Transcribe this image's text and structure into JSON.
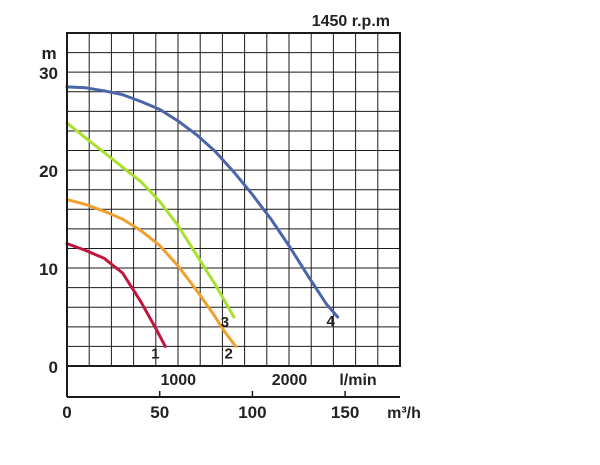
{
  "chart_data": {
    "type": "line",
    "title": "1450 r.p.m",
    "ylabel": "m",
    "ylim": [
      0,
      34
    ],
    "y_ticks": [
      0,
      10,
      20,
      30
    ],
    "x_primary": {
      "unit": "l/min",
      "ticks": [
        1000,
        2000
      ],
      "xlim": [
        0,
        2993
      ]
    },
    "x_secondary": {
      "unit": "m³/h",
      "ticks": [
        0,
        50,
        100,
        150
      ],
      "xlim": [
        0,
        179.6
      ]
    },
    "grid": true,
    "series": [
      {
        "name": "1",
        "color": "#c0163c",
        "x": [
          0,
          10,
          20,
          30,
          40,
          48,
          53
        ],
        "y": [
          12.5,
          11.8,
          11.0,
          9.5,
          6.5,
          3.8,
          2.0
        ]
      },
      {
        "name": "2",
        "color": "#f0a030",
        "x": [
          0,
          10,
          20,
          30,
          40,
          50,
          60,
          70,
          80,
          85,
          91
        ],
        "y": [
          17.0,
          16.5,
          15.8,
          15.0,
          13.8,
          12.3,
          10.2,
          7.7,
          5.0,
          3.5,
          2.0
        ]
      },
      {
        "name": "3",
        "color": "#a8e030",
        "x": [
          0,
          10,
          20,
          30,
          40,
          50,
          60,
          70,
          80,
          90
        ],
        "y": [
          24.8,
          23.3,
          21.8,
          20.3,
          18.8,
          16.8,
          14.3,
          11.3,
          8.3,
          5.0
        ]
      },
      {
        "name": "4",
        "color": "#4a65a8",
        "x": [
          0,
          10,
          20,
          30,
          40,
          50,
          60,
          70,
          80,
          90,
          100,
          110,
          120,
          130,
          140,
          146
        ],
        "y": [
          28.5,
          28.4,
          28.1,
          27.7,
          27.0,
          26.2,
          25.0,
          23.6,
          21.9,
          19.8,
          17.5,
          15.0,
          12.2,
          9.2,
          6.3,
          5.0
        ]
      }
    ]
  }
}
